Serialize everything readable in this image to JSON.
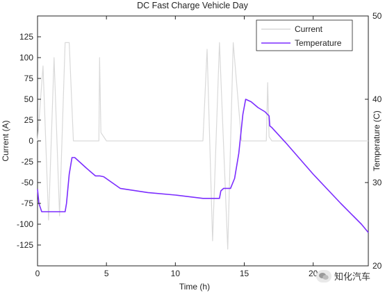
{
  "chart_data": {
    "type": "line",
    "title": "DC Fast Charge Vehicle Day",
    "xlabel": "Time (h)",
    "ylabel_left": "Current (A)",
    "ylabel_right": "Temperature (C)",
    "xlim": [
      0,
      24
    ],
    "ylim_left": [
      -150,
      150
    ],
    "ylim_right": [
      20,
      50
    ],
    "xticks": [
      "0",
      "5",
      "10",
      "15",
      "20"
    ],
    "yticks_left": [
      "-125",
      "-100",
      "-75",
      "-50",
      "-25",
      "0",
      "25",
      "50",
      "75",
      "100",
      "125"
    ],
    "yticks_right": [
      "20",
      "30",
      "40",
      "50"
    ],
    "grid": false,
    "legend_position": "top-right",
    "legend": [
      "Current",
      "Temperature"
    ],
    "colors": {
      "current": "#d9d9d9",
      "temperature": "#7b2cff",
      "axes": "#222222"
    },
    "series": [
      {
        "name": "Current",
        "axis": "left",
        "x": [
          0.0,
          0.4,
          0.8,
          1.2,
          1.6,
          2.0,
          2.3,
          2.6,
          3.0,
          4.45,
          4.5,
          4.6,
          5.0,
          12.0,
          12.3,
          12.7,
          13.2,
          13.8,
          14.2,
          14.8,
          16.6,
          16.7,
          16.8,
          17.0,
          23.6,
          24.0
        ],
        "y": [
          0,
          90,
          -95,
          100,
          -90,
          118,
          118,
          0,
          0,
          0,
          100,
          10,
          0,
          0,
          110,
          -120,
          118,
          -130,
          118,
          0,
          0,
          70,
          5,
          0,
          0,
          0
        ]
      },
      {
        "name": "Temperature",
        "axis": "right",
        "x": [
          0.0,
          0.1,
          0.3,
          0.5,
          1.0,
          1.5,
          2.0,
          2.1,
          2.3,
          2.5,
          2.7,
          3.5,
          4.2,
          4.5,
          4.8,
          6.0,
          8.0,
          10.0,
          12.0,
          13.2,
          13.3,
          13.5,
          14.0,
          14.3,
          14.6,
          14.9,
          15.1,
          15.5,
          16.0,
          16.5,
          16.8,
          16.85,
          17.0,
          18.0,
          20.0,
          22.0,
          23.5,
          24.0
        ],
        "y": [
          29.2,
          27.5,
          26.5,
          26.5,
          26.5,
          26.5,
          26.5,
          27.5,
          31.0,
          33.0,
          33.0,
          31.8,
          30.8,
          30.8,
          30.7,
          29.3,
          28.8,
          28.5,
          28.1,
          28.1,
          29.0,
          29.3,
          29.3,
          30.5,
          33.5,
          38.2,
          40.0,
          39.7,
          39.0,
          38.5,
          38.0,
          36.8,
          36.6,
          34.8,
          31.0,
          27.5,
          25.0,
          24.0
        ]
      }
    ]
  },
  "watermark": {
    "icon": "wechat-icon",
    "text": "知化汽车"
  }
}
